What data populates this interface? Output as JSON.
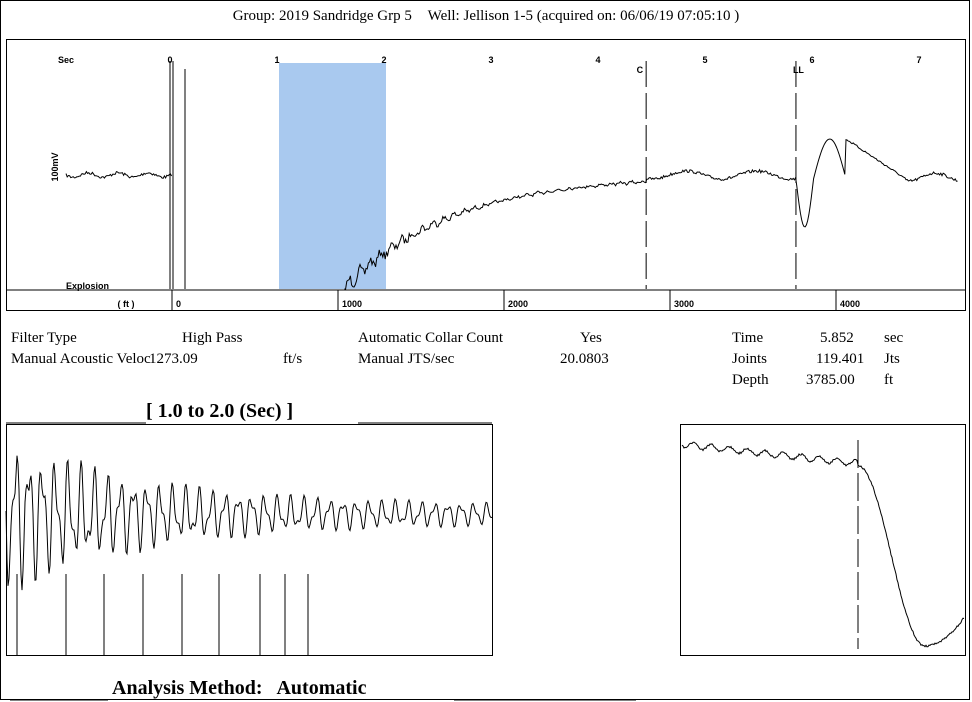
{
  "header": {
    "group": "Group: 2019 Sandridge Grp 5",
    "well": "Well: Jellison 1-5 (acquired on: 06/06/19 07:05:10 )"
  },
  "chart_data": [
    {
      "type": "line",
      "name": "main-trace",
      "x_top_label": "Sec",
      "x_top_ticks": [
        "0",
        "1",
        "2",
        "3",
        "4",
        "5",
        "6",
        "7"
      ],
      "x_bottom_label": "( ft )",
      "x_bottom_ticks": [
        "0",
        "1000",
        "2000",
        "3000",
        "4000"
      ],
      "y_label": "100mV",
      "explosion_label": "Explosion",
      "markers": [
        {
          "label": "C",
          "x_sec": 4.45
        },
        {
          "label": "LL",
          "x_sec": 5.85
        }
      ],
      "highlight_range_sec": [
        1.0,
        2.0
      ],
      "xlim_sec": [
        -0.1,
        7.3
      ]
    },
    {
      "type": "line",
      "name": "zoom-trace",
      "range": "1.0 to 2.0 (Sec)"
    },
    {
      "type": "line",
      "name": "marker-trace",
      "marker_x_sec": 5.852
    }
  ],
  "params": {
    "filter_type_label": "Filter Type",
    "filter_type_value": "High Pass",
    "velocity_label": "Manual Acoustic Veloc",
    "velocity_value": "1273.09",
    "velocity_unit": "ft/s",
    "collar_label": "Automatic Collar Count",
    "collar_value": "Yes",
    "jts_label": "Manual JTS/sec",
    "jts_value": "20.0803",
    "time_label": "Time",
    "time_value": "5.852",
    "time_unit": "sec",
    "joints_label": "Joints",
    "joints_value": "119.401",
    "joints_unit": "Jts",
    "depth_label": "Depth",
    "depth_value": "3785.00",
    "depth_unit": "ft"
  },
  "zoom_title": "[ 1.0  to  2.0 (Sec) ]",
  "analysis": {
    "label": "Analysis Method:",
    "value": "Automatic"
  }
}
